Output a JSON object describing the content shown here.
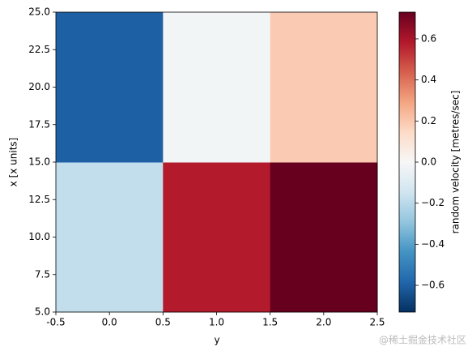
{
  "chart_data": {
    "type": "heatmap",
    "xlabel": "y",
    "ylabel": "x [x units]",
    "x_edges": [
      -0.5,
      0.5,
      1.5,
      2.5
    ],
    "y_edges": [
      5,
      15,
      25
    ],
    "values": [
      [
        -0.18,
        0.58,
        0.73
      ],
      [
        -0.6,
        -0.02,
        0.19
      ]
    ],
    "colormap": "RdBu_r",
    "xlim": [
      -0.5,
      2.5
    ],
    "xticks": [
      -0.5,
      {
        "value": 0,
        "label": "0.0"
      },
      0.5,
      {
        "value": 1,
        "label": "1.0"
      },
      1.5,
      {
        "value": 2,
        "label": "2.0"
      },
      2.5
    ],
    "ylim": [
      5,
      25
    ],
    "yticks": [
      {
        "value": 5,
        "label": "5.0"
      },
      7.5,
      {
        "value": 10,
        "label": "10.0"
      },
      12.5,
      {
        "value": 15,
        "label": "15.0"
      },
      17.5,
      {
        "value": 20,
        "label": "20.0"
      },
      22.5,
      {
        "value": 25,
        "label": "25.0"
      }
    ],
    "colorbar": {
      "label": "random velocity [metres/sec]",
      "lim": [
        -0.73,
        0.73
      ],
      "ticks": [
        {
          "value": -0.6,
          "label": "−0.6"
        },
        {
          "value": -0.4,
          "label": "−0.4"
        },
        {
          "value": -0.2,
          "label": "−0.2"
        },
        {
          "value": 0,
          "label": "0.0"
        },
        0.2,
        0.4,
        0.6
      ]
    },
    "watermark": "@稀土掘金技术社区"
  }
}
